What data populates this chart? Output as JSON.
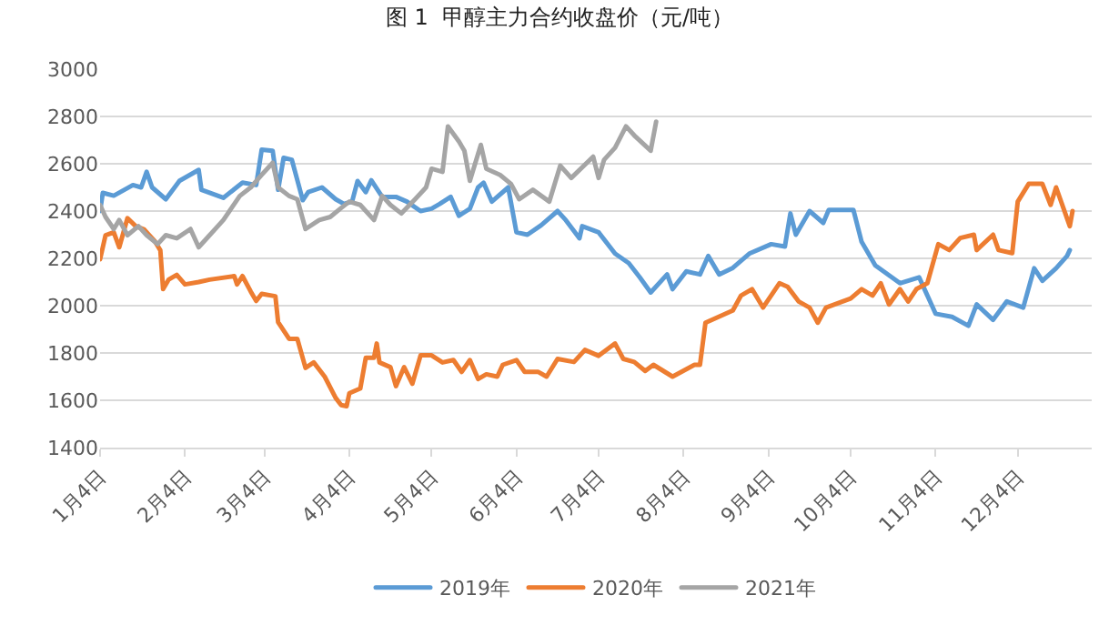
{
  "chart_data": {
    "type": "line",
    "title": "图 1  甲醇主力合约收盘价（元/吨）",
    "xlim": [
      "--01-04",
      "--12-31"
    ],
    "xticks": [
      {
        "value": "--01-04",
        "label": "1月4日"
      },
      {
        "value": "--02-04",
        "label": "2月4日"
      },
      {
        "value": "--03-04",
        "label": "3月4日"
      },
      {
        "value": "--04-04",
        "label": "4月4日"
      },
      {
        "value": "--05-04",
        "label": "5月4日"
      },
      {
        "value": "--06-04",
        "label": "6月4日"
      },
      {
        "value": "--07-04",
        "label": "7月4日"
      },
      {
        "value": "--08-04",
        "label": "8月4日"
      },
      {
        "value": "--09-04",
        "label": "9月4日"
      },
      {
        "value": "--10-04",
        "label": "10月4日"
      },
      {
        "value": "--11-04",
        "label": "11月4日"
      },
      {
        "value": "--12-04",
        "label": "12月4日"
      }
    ],
    "ylim": [
      1400,
      3000
    ],
    "yticks": [
      1400,
      1600,
      1800,
      2000,
      2200,
      2400,
      2600,
      2800,
      3000
    ],
    "grid": "y",
    "legend": "bottom",
    "marker": "none",
    "line_style": "solid",
    "series": [
      {
        "name": "2019年",
        "color": "#5b9bd5",
        "x": [
          "--01-04",
          "--01-05",
          "--01-09",
          "--01-16",
          "--01-19",
          "--01-21",
          "--01-23",
          "--01-28",
          "--02-02",
          "--02-09",
          "--02-10",
          "--02-18",
          "--02-25",
          "--03-01",
          "--03-03",
          "--03-07",
          "--03-09",
          "--03-11",
          "--03-14",
          "--03-18",
          "--03-20",
          "--03-25",
          "--03-30",
          "--04-02",
          "--04-05",
          "--04-07",
          "--04-10",
          "--04-12",
          "--04-16",
          "--04-21",
          "--04-25",
          "--04-30",
          "--05-04",
          "--05-07",
          "--05-11",
          "--05-14",
          "--05-18",
          "--05-21",
          "--05-23",
          "--05-26",
          "--06-01",
          "--06-04",
          "--06-08",
          "--06-13",
          "--06-19",
          "--06-22",
          "--06-27",
          "--06-28",
          "--07-04",
          "--07-10",
          "--07-15",
          "--07-19",
          "--07-23",
          "--07-29",
          "--07-31",
          "--08-05",
          "--08-10",
          "--08-13",
          "--08-17",
          "--08-22",
          "--08-28",
          "--09-05",
          "--09-10",
          "--09-12",
          "--09-14",
          "--09-19",
          "--09-24",
          "--09-26",
          "--10-05",
          "--10-08",
          "--10-13",
          "--10-19",
          "--10-22",
          "--10-29",
          "--11-04",
          "--11-10",
          "--11-16",
          "--11-19",
          "--11-25",
          "--11-30",
          "--12-06",
          "--12-10",
          "--12-13",
          "--12-18",
          "--12-22",
          "--12-23"
        ],
        "values": [
          2400,
          2477,
          2465,
          2510,
          2500,
          2566,
          2500,
          2450,
          2528,
          2574,
          2490,
          2456,
          2520,
          2510,
          2660,
          2655,
          2490,
          2625,
          2617,
          2446,
          2480,
          2500,
          2450,
          2430,
          2440,
          2527,
          2480,
          2530,
          2460,
          2460,
          2440,
          2400,
          2410,
          2430,
          2460,
          2380,
          2410,
          2500,
          2520,
          2440,
          2500,
          2310,
          2300,
          2340,
          2400,
          2362,
          2285,
          2336,
          2310,
          2220,
          2180,
          2120,
          2056,
          2132,
          2070,
          2145,
          2132,
          2210,
          2132,
          2160,
          2220,
          2260,
          2250,
          2390,
          2300,
          2400,
          2350,
          2405,
          2405,
          2270,
          2170,
          2120,
          2095,
          2120,
          1966,
          1953,
          1915,
          2005,
          1940,
          2018,
          1992,
          2158,
          2105,
          2158,
          2210,
          2235
        ]
      },
      {
        "name": "2020年",
        "color": "#ed7d31",
        "x": [
          "--01-04",
          "--01-06",
          "--01-09",
          "--01-11",
          "--01-14",
          "--01-17",
          "--01-20",
          "--01-24",
          "--01-26",
          "--01-27",
          "--01-29",
          "--02-01",
          "--02-04",
          "--02-09",
          "--02-13",
          "--02-22",
          "--02-23",
          "--02-25",
          "--02-28",
          "--03-01",
          "--03-03",
          "--03-08",
          "--03-09",
          "--03-13",
          "--03-16",
          "--03-19",
          "--03-22",
          "--03-26",
          "--03-30",
          "--04-01",
          "--04-03",
          "--04-04",
          "--04-08",
          "--04-10",
          "--04-13",
          "--04-14",
          "--04-15",
          "--04-19",
          "--04-21",
          "--04-24",
          "--04-27",
          "--04-30",
          "--05-04",
          "--05-08",
          "--05-12",
          "--05-15",
          "--05-18",
          "--05-21",
          "--05-24",
          "--05-28",
          "--05-30",
          "--06-04",
          "--06-07",
          "--06-12",
          "--06-15",
          "--06-19",
          "--06-25",
          "--06-29",
          "--07-04",
          "--07-10",
          "--07-13",
          "--07-17",
          "--07-21",
          "--07-24",
          "--07-31",
          "--08-08",
          "--08-10",
          "--08-12",
          "--08-17",
          "--08-22",
          "--08-25",
          "--08-29",
          "--09-02",
          "--09-08",
          "--09-11",
          "--09-15",
          "--09-19",
          "--09-22",
          "--09-25",
          "--10-04",
          "--10-08",
          "--10-12",
          "--10-15",
          "--10-18",
          "--10-22",
          "--10-25",
          "--10-28",
          "--11-01",
          "--11-05",
          "--11-09",
          "--11-13",
          "--11-18",
          "--11-19",
          "--11-25",
          "--11-27",
          "--12-02",
          "--12-04",
          "--12-08",
          "--12-13",
          "--12-16",
          "--12-18",
          "--12-23",
          "--12-24"
        ],
        "values": [
          2196,
          2298,
          2310,
          2247,
          2370,
          2336,
          2323,
          2272,
          2234,
          2070,
          2110,
          2130,
          2090,
          2100,
          2110,
          2125,
          2090,
          2125,
          2060,
          2020,
          2050,
          2040,
          1930,
          1860,
          1860,
          1737,
          1760,
          1700,
          1610,
          1580,
          1575,
          1630,
          1650,
          1780,
          1780,
          1840,
          1760,
          1740,
          1660,
          1740,
          1670,
          1790,
          1790,
          1760,
          1770,
          1720,
          1770,
          1690,
          1710,
          1700,
          1750,
          1770,
          1720,
          1720,
          1700,
          1775,
          1762,
          1813,
          1788,
          1840,
          1775,
          1762,
          1724,
          1750,
          1700,
          1750,
          1750,
          1928,
          1954,
          1980,
          2043,
          2070,
          1992,
          2095,
          2080,
          2018,
          1992,
          1928,
          1992,
          2030,
          2070,
          2043,
          2095,
          2005,
          2070,
          2018,
          2070,
          2095,
          2260,
          2235,
          2286,
          2300,
          2235,
          2300,
          2235,
          2222,
          2440,
          2515,
          2515,
          2426,
          2500,
          2336,
          2400
        ]
      },
      {
        "name": "2021年",
        "color": "#a5a5a5",
        "x": [
          "--01-04",
          "--01-06",
          "--01-09",
          "--01-11",
          "--01-14",
          "--01-18",
          "--01-21",
          "--01-25",
          "--01-28",
          "--02-01",
          "--02-06",
          "--02-09",
          "--02-13",
          "--02-18",
          "--02-24",
          "--02-28",
          "--03-03",
          "--03-07",
          "--03-09",
          "--03-13",
          "--03-16",
          "--03-19",
          "--03-24",
          "--03-28",
          "--04-01",
          "--04-04",
          "--04-08",
          "--04-13",
          "--04-16",
          "--04-19",
          "--04-23",
          "--04-28",
          "--05-02",
          "--05-04",
          "--05-08",
          "--05-10",
          "--05-14",
          "--05-16",
          "--05-18",
          "--05-22",
          "--05-24",
          "--05-29",
          "--06-02",
          "--06-05",
          "--06-10",
          "--06-16",
          "--06-20",
          "--06-24",
          "--07-02",
          "--07-04",
          "--07-06",
          "--07-10",
          "--07-14",
          "--07-17",
          "--07-23",
          "--07-25"
        ],
        "values": [
          2426,
          2375,
          2324,
          2362,
          2298,
          2336,
          2298,
          2260,
          2298,
          2285,
          2324,
          2247,
          2298,
          2362,
          2464,
          2500,
          2553,
          2604,
          2500,
          2464,
          2450,
          2324,
          2362,
          2375,
          2413,
          2440,
          2426,
          2362,
          2464,
          2426,
          2390,
          2450,
          2500,
          2579,
          2566,
          2758,
          2694,
          2655,
          2528,
          2680,
          2579,
          2553,
          2515,
          2450,
          2490,
          2440,
          2592,
          2540,
          2630,
          2540,
          2617,
          2668,
          2758,
          2720,
          2655,
          2778
        ]
      }
    ]
  }
}
